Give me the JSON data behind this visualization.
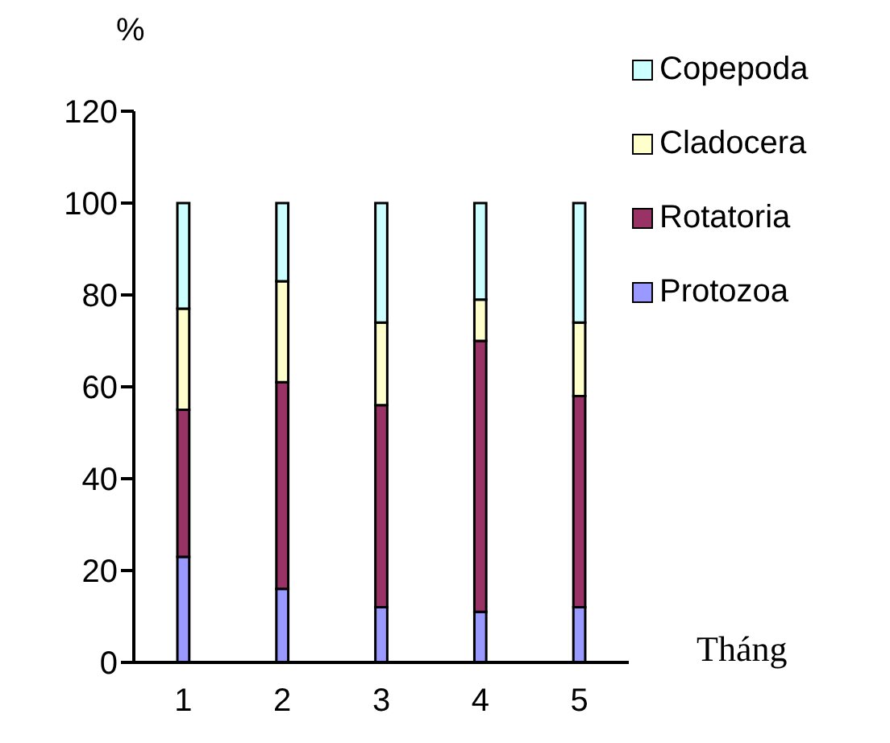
{
  "chart_data": {
    "type": "bar",
    "stacked": true,
    "ylabel": "%",
    "xlabel": "Tháng",
    "categories": [
      "1",
      "2",
      "3",
      "4",
      "5"
    ],
    "ylim": [
      0,
      120
    ],
    "yticks": [
      0,
      20,
      40,
      60,
      80,
      100,
      120
    ],
    "grid": false,
    "legend": "top right",
    "series": [
      {
        "name": "Protozoa",
        "color": "#9999ff",
        "values": [
          23,
          16,
          12,
          11,
          12
        ]
      },
      {
        "name": "Rotatoria",
        "color": "#993366",
        "values": [
          32,
          45,
          44,
          59,
          46
        ]
      },
      {
        "name": "Cladocera",
        "color": "#ffffcc",
        "values": [
          22,
          22,
          18,
          9,
          16
        ]
      },
      {
        "name": "Copepoda",
        "color": "#ccffff",
        "values": [
          23,
          17,
          26,
          21,
          26
        ]
      }
    ]
  }
}
